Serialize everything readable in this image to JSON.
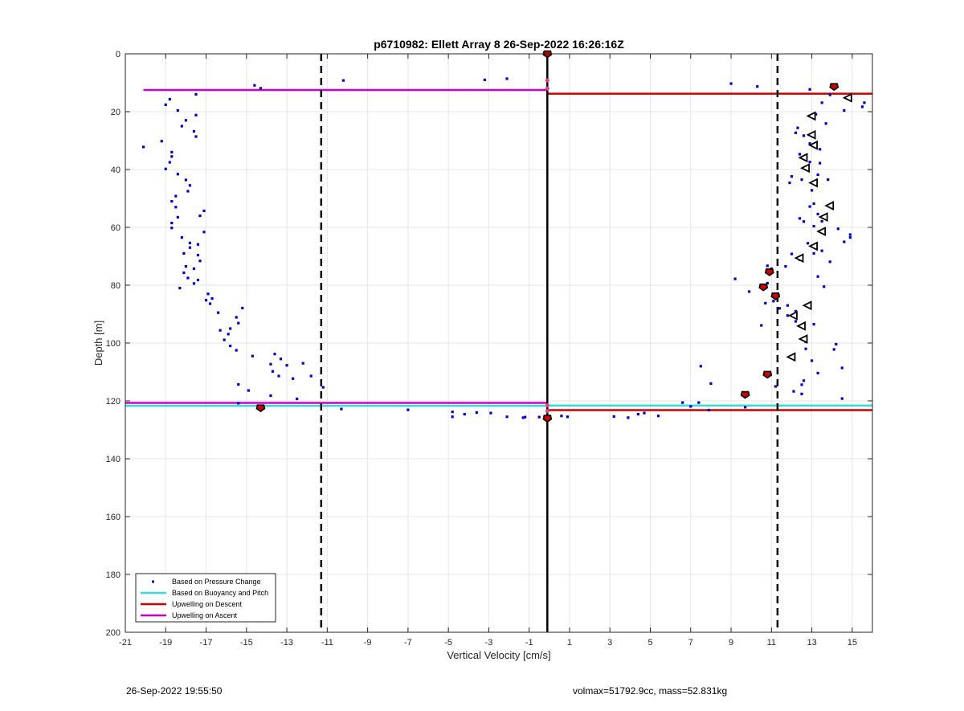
{
  "chart_data": {
    "type": "scatter",
    "title": "p6710982: Ellett Array 8 26-Sep-2022 16:26:16Z",
    "xlabel": "Vertical Velocity [cm/s]",
    "ylabel": "Depth [m]",
    "xlim": [
      -21,
      16
    ],
    "ylim": [
      0,
      200
    ],
    "y_reversed": true,
    "grid": true,
    "x_ticks": [
      -21,
      -19,
      -17,
      -15,
      -13,
      -11,
      -9,
      -7,
      -5,
      -3,
      -1,
      1,
      3,
      5,
      7,
      9,
      11,
      13,
      15
    ],
    "y_ticks": [
      0,
      20,
      40,
      60,
      80,
      100,
      120,
      140,
      160,
      180,
      200
    ],
    "legend_position": "bottom-left",
    "legend": [
      {
        "label": "Based on Pressure Change",
        "color": "#0000cc",
        "marker": "dot"
      },
      {
        "label": "Based on Buoyancy and Pitch",
        "color": "#33dddd",
        "marker": "line"
      },
      {
        "label": "Upwelling on Descent",
        "color": "#cc0000",
        "marker": "line"
      },
      {
        "label": "Upwelling on Ascent",
        "color": "#cc00cc",
        "marker": "line"
      }
    ],
    "pressure_change_points": [
      [
        -20.1,
        32.2
      ],
      [
        -19.2,
        30.2
      ],
      [
        -19.0,
        17.6
      ],
      [
        -18.8,
        15.7
      ],
      [
        -18.4,
        19.6
      ],
      [
        -18.2,
        25.0
      ],
      [
        -18.0,
        23.0
      ],
      [
        -17.6,
        26.8
      ],
      [
        -17.5,
        28.6
      ],
      [
        -17.5,
        21.2
      ],
      [
        -17.5,
        14.0
      ],
      [
        -19.0,
        39.8
      ],
      [
        -18.8,
        37.5
      ],
      [
        -18.7,
        35.5
      ],
      [
        -18.7,
        34.0
      ],
      [
        -18.4,
        41.6
      ],
      [
        -18.0,
        43.6
      ],
      [
        -17.8,
        45.5
      ],
      [
        -17.9,
        47.5
      ],
      [
        -18.7,
        51.0
      ],
      [
        -18.5,
        49.2
      ],
      [
        -18.5,
        53.0
      ],
      [
        -18.4,
        56.5
      ],
      [
        -18.7,
        58.5
      ],
      [
        -18.7,
        60.2
      ],
      [
        -17.1,
        54.3
      ],
      [
        -17.3,
        56.0
      ],
      [
        -17.1,
        61.6
      ],
      [
        -18.2,
        63.5
      ],
      [
        -17.8,
        65.4
      ],
      [
        -17.4,
        65.9
      ],
      [
        -17.8,
        67.0
      ],
      [
        -18.1,
        69.0
      ],
      [
        -17.4,
        69.6
      ],
      [
        -17.3,
        71.6
      ],
      [
        -18.0,
        73.5
      ],
      [
        -17.6,
        74.3
      ],
      [
        -18.1,
        75.7
      ],
      [
        -17.9,
        77.5
      ],
      [
        -17.4,
        78.2
      ],
      [
        -17.6,
        79.4
      ],
      [
        -18.3,
        81.0
      ],
      [
        -16.9,
        83.0
      ],
      [
        -16.7,
        84.6
      ],
      [
        -17.0,
        85.2
      ],
      [
        -16.8,
        86.4
      ],
      [
        -16.4,
        89.5
      ],
      [
        -15.2,
        87.9
      ],
      [
        -15.5,
        91.1
      ],
      [
        -15.4,
        93.1
      ],
      [
        -15.8,
        95.0
      ],
      [
        -16.3,
        95.6
      ],
      [
        -15.9,
        96.9
      ],
      [
        -16.1,
        98.9
      ],
      [
        -15.8,
        101.0
      ],
      [
        -15.5,
        102.5
      ],
      [
        -14.7,
        104.5
      ],
      [
        -13.6,
        103.8
      ],
      [
        -13.3,
        105.5
      ],
      [
        -13.8,
        107.3
      ],
      [
        -13.0,
        107.7
      ],
      [
        -12.2,
        107.0
      ],
      [
        -13.7,
        109.8
      ],
      [
        -13.4,
        111.4
      ],
      [
        -12.7,
        112.3
      ],
      [
        -11.8,
        111.4
      ],
      [
        -11.2,
        115.3
      ],
      [
        -15.4,
        114.3
      ],
      [
        -14.9,
        116.4
      ],
      [
        -13.8,
        118.2
      ],
      [
        -12.5,
        119.3
      ],
      [
        -15.4,
        120.8
      ],
      [
        -14.6,
        10.9
      ],
      [
        -14.3,
        11.9
      ],
      [
        -10.2,
        9.2
      ],
      [
        -3.2,
        9.0
      ],
      [
        -2.1,
        8.6
      ],
      [
        -10.3,
        122.8
      ],
      [
        -7.0,
        123.1
      ],
      [
        -4.8,
        123.8
      ],
      [
        -4.8,
        125.5
      ],
      [
        -4.2,
        124.6
      ],
      [
        -3.6,
        124.0
      ],
      [
        -2.9,
        124.2
      ],
      [
        -2.1,
        125.5
      ],
      [
        -1.3,
        125.8
      ],
      [
        -1.2,
        125.6
      ],
      [
        -0.5,
        125.6
      ],
      [
        0.6,
        125.2
      ],
      [
        0.9,
        125.5
      ],
      [
        3.2,
        125.4
      ],
      [
        3.9,
        125.8
      ],
      [
        4.4,
        124.6
      ],
      [
        4.7,
        124.2
      ],
      [
        5.4,
        125.2
      ],
      [
        6.6,
        120.6
      ],
      [
        7.0,
        121.9
      ],
      [
        7.4,
        120.6
      ],
      [
        7.9,
        123.2
      ],
      [
        9.7,
        122.2
      ],
      [
        7.5,
        108.0
      ],
      [
        8.0,
        114.0
      ],
      [
        9.2,
        77.8
      ],
      [
        9.0,
        10.3
      ],
      [
        10.3,
        11.3
      ],
      [
        12.9,
        12.3
      ],
      [
        13.9,
        14.2
      ],
      [
        14.6,
        19.6
      ],
      [
        15.6,
        16.9
      ],
      [
        15.5,
        18.3
      ],
      [
        11.2,
        115.0
      ],
      [
        12.1,
        116.7
      ],
      [
        12.5,
        117.6
      ],
      [
        14.5,
        119.2
      ],
      [
        12.5,
        114.4
      ],
      [
        12.6,
        113.0
      ],
      [
        13.3,
        110.4
      ],
      [
        13.0,
        106.1
      ],
      [
        14.5,
        108.6
      ],
      [
        14.2,
        100.4
      ],
      [
        14.1,
        102.2
      ],
      [
        12.7,
        99.6
      ],
      [
        12.7,
        102.0
      ],
      [
        13.1,
        93.5
      ],
      [
        12.2,
        92.5
      ],
      [
        11.8,
        90.5
      ],
      [
        12.2,
        89.0
      ],
      [
        11.4,
        88.0
      ],
      [
        11.8,
        87.0
      ],
      [
        10.5,
        93.9
      ],
      [
        10.7,
        86.2
      ],
      [
        11.1,
        85.5
      ],
      [
        10.6,
        81.3
      ],
      [
        9.9,
        82.2
      ],
      [
        10.8,
        79.3
      ],
      [
        10.8,
        73.3
      ],
      [
        11.0,
        74.3
      ],
      [
        11.7,
        73.5
      ],
      [
        12.0,
        69.2
      ],
      [
        12.4,
        71.2
      ],
      [
        13.1,
        69.0
      ],
      [
        13.5,
        68.1
      ],
      [
        13.9,
        71.9
      ],
      [
        13.3,
        77.0
      ],
      [
        13.6,
        80.5
      ],
      [
        14.3,
        60.5
      ],
      [
        14.9,
        62.5
      ],
      [
        14.9,
        63.5
      ],
      [
        14.6,
        65.0
      ],
      [
        12.8,
        65.5
      ],
      [
        13.1,
        59.6
      ],
      [
        13.5,
        57.9
      ],
      [
        13.3,
        55.4
      ],
      [
        12.6,
        58.0
      ],
      [
        12.4,
        56.9
      ],
      [
        12.9,
        52.8
      ],
      [
        13.1,
        51.8
      ],
      [
        13.0,
        47.2
      ],
      [
        12.5,
        43.5
      ],
      [
        12.0,
        42.4
      ],
      [
        11.9,
        44.6
      ],
      [
        13.3,
        41.8
      ],
      [
        13.8,
        43.5
      ],
      [
        12.3,
        25.6
      ],
      [
        12.2,
        27.3
      ],
      [
        12.6,
        28.3
      ],
      [
        12.9,
        31.0
      ],
      [
        13.4,
        33.0
      ],
      [
        12.4,
        34.7
      ],
      [
        12.9,
        37.4
      ],
      [
        13.4,
        37.8
      ],
      [
        13.7,
        24.1
      ],
      [
        13.2,
        20.9
      ],
      [
        13.5,
        16.9
      ]
    ],
    "descent_markers_red": [
      [
        -0.1,
        0.0
      ],
      [
        14.1,
        11.3
      ],
      [
        10.9,
        75.4
      ],
      [
        10.6,
        80.6
      ],
      [
        11.2,
        83.7
      ],
      [
        10.8,
        110.8
      ],
      [
        9.7,
        117.8
      ],
      [
        -14.3,
        122.4
      ],
      [
        -0.1,
        126.0
      ]
    ],
    "ascent_markers_triangle": [
      [
        14.8,
        15.2
      ],
      [
        13.0,
        21.5
      ],
      [
        13.0,
        28.0
      ],
      [
        13.1,
        31.6
      ],
      [
        12.6,
        35.9
      ],
      [
        12.7,
        39.5
      ],
      [
        13.1,
        44.6
      ],
      [
        13.9,
        52.5
      ],
      [
        13.6,
        56.4
      ],
      [
        13.5,
        61.4
      ],
      [
        13.1,
        66.5
      ],
      [
        12.4,
        70.6
      ],
      [
        12.8,
        87.0
      ],
      [
        12.1,
        90.5
      ],
      [
        12.5,
        94.1
      ],
      [
        12.6,
        98.6
      ],
      [
        12.0,
        104.8
      ]
    ],
    "pink_dots": [
      [
        -0.1,
        9.2
      ],
      [
        -0.1,
        12.0
      ],
      [
        -0.1,
        121.6
      ],
      [
        -0.1,
        123.5
      ]
    ],
    "lines": [
      {
        "series": "Upwelling on Ascent",
        "x": [
          -20.1,
          -0.1
        ],
        "y": 12.5
      },
      {
        "series": "Upwelling on Descent",
        "x": [
          -0.1,
          16.0
        ],
        "y": 13.8
      },
      {
        "series": "Upwelling on Ascent",
        "x": [
          -21.0,
          -0.1
        ],
        "y": 120.7
      },
      {
        "series": "Based on Buoyancy and Pitch",
        "x": [
          -21.0,
          -0.1
        ],
        "y": 121.7
      },
      {
        "series": "Based on Buoyancy and Pitch",
        "x": [
          -0.1,
          16.0
        ],
        "y": 121.6
      },
      {
        "series": "Upwelling on Descent",
        "x": [
          -0.1,
          16.0
        ],
        "y": 123.2
      }
    ],
    "vertical_lines": [
      {
        "x": -11.3,
        "style": "dashed"
      },
      {
        "x": -0.1,
        "style": "solid"
      },
      {
        "x": 11.3,
        "style": "dashed"
      }
    ]
  },
  "footer": {
    "left": "26-Sep-2022 19:55:50",
    "right": "volmax=51792.9cc, mass=52.831kg"
  }
}
